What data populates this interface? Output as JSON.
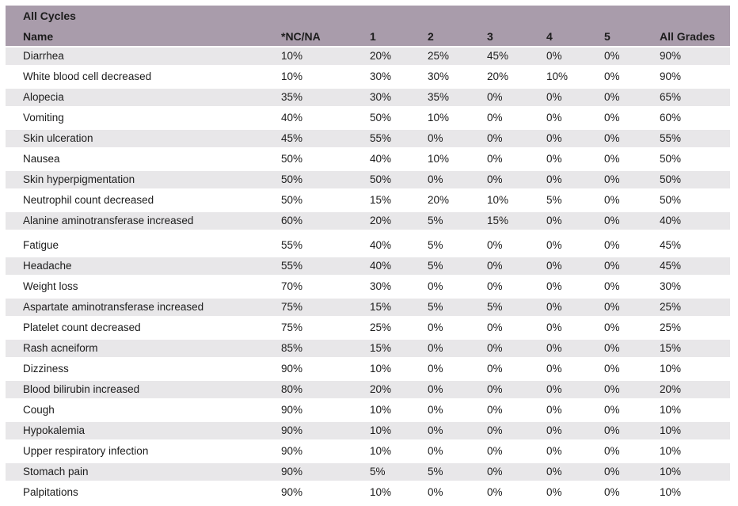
{
  "table": {
    "group_header": "All Cycles",
    "columns": [
      "Name",
      "*NC/NA",
      "1",
      "2",
      "3",
      "4",
      "5",
      "All Grades"
    ],
    "sections": [
      {
        "rows": [
          {
            "name": "Diarrhea",
            "values": [
              "10%",
              "20%",
              "25%",
              "45%",
              "0%",
              "0%",
              "90%"
            ]
          },
          {
            "name": "White blood cell decreased",
            "values": [
              "10%",
              "30%",
              "30%",
              "20%",
              "10%",
              "0%",
              "90%"
            ]
          },
          {
            "name": "Alopecia",
            "values": [
              "35%",
              "30%",
              "35%",
              "0%",
              "0%",
              "0%",
              "65%"
            ]
          },
          {
            "name": "Vomiting",
            "values": [
              "40%",
              "50%",
              "10%",
              "0%",
              "0%",
              "0%",
              "60%"
            ]
          },
          {
            "name": "Skin ulceration",
            "values": [
              "45%",
              "55%",
              "0%",
              "0%",
              "0%",
              "0%",
              "55%"
            ]
          },
          {
            "name": "Nausea",
            "values": [
              "50%",
              "40%",
              "10%",
              "0%",
              "0%",
              "0%",
              "50%"
            ]
          },
          {
            "name": "Skin hyperpigmentation",
            "values": [
              "50%",
              "50%",
              "0%",
              "0%",
              "0%",
              "0%",
              "50%"
            ]
          },
          {
            "name": "Neutrophil count decreased",
            "values": [
              "50%",
              "15%",
              "20%",
              "10%",
              "5%",
              "0%",
              "50%"
            ]
          },
          {
            "name": "Alanine aminotransferase increased",
            "values": [
              "60%",
              "20%",
              "5%",
              "15%",
              "0%",
              "0%",
              "40%"
            ]
          }
        ]
      },
      {
        "rows": [
          {
            "name": "Fatigue",
            "values": [
              "55%",
              "40%",
              "5%",
              "0%",
              "0%",
              "0%",
              "45%"
            ]
          },
          {
            "name": "Headache",
            "values": [
              "55%",
              "40%",
              "5%",
              "0%",
              "0%",
              "0%",
              "45%"
            ]
          },
          {
            "name": "Weight loss",
            "values": [
              "70%",
              "30%",
              "0%",
              "0%",
              "0%",
              "0%",
              "30%"
            ]
          },
          {
            "name": "Aspartate aminotransferase increased",
            "values": [
              "75%",
              "15%",
              "5%",
              "5%",
              "0%",
              "0%",
              "25%"
            ]
          },
          {
            "name": "Platelet count decreased",
            "values": [
              "75%",
              "25%",
              "0%",
              "0%",
              "0%",
              "0%",
              "25%"
            ]
          },
          {
            "name": "Rash acneiform",
            "values": [
              "85%",
              "15%",
              "0%",
              "0%",
              "0%",
              "0%",
              "15%"
            ]
          },
          {
            "name": "Dizziness",
            "values": [
              "90%",
              "10%",
              "0%",
              "0%",
              "0%",
              "0%",
              "10%"
            ]
          },
          {
            "name": "Blood bilirubin increased",
            "values": [
              "80%",
              "20%",
              "0%",
              "0%",
              "0%",
              "0%",
              "20%"
            ]
          },
          {
            "name": "Cough",
            "values": [
              "90%",
              "10%",
              "0%",
              "0%",
              "0%",
              "0%",
              "10%"
            ]
          },
          {
            "name": "Hypokalemia",
            "values": [
              "90%",
              "10%",
              "0%",
              "0%",
              "0%",
              "0%",
              "10%"
            ]
          },
          {
            "name": "Upper respiratory infection",
            "values": [
              "90%",
              "10%",
              "0%",
              "0%",
              "0%",
              "0%",
              "10%"
            ]
          },
          {
            "name": "Stomach pain",
            "values": [
              "90%",
              "5%",
              "5%",
              "0%",
              "0%",
              "0%",
              "10%"
            ]
          },
          {
            "name": "Palpitations",
            "values": [
              "90%",
              "10%",
              "0%",
              "0%",
              "0%",
              "0%",
              "10%"
            ]
          }
        ]
      }
    ],
    "colors": {
      "header_bg": "#a99cab",
      "stripe_bg": "#e8e7e9",
      "text": "#1c1c1c",
      "row_separator": "#ffffff"
    }
  }
}
